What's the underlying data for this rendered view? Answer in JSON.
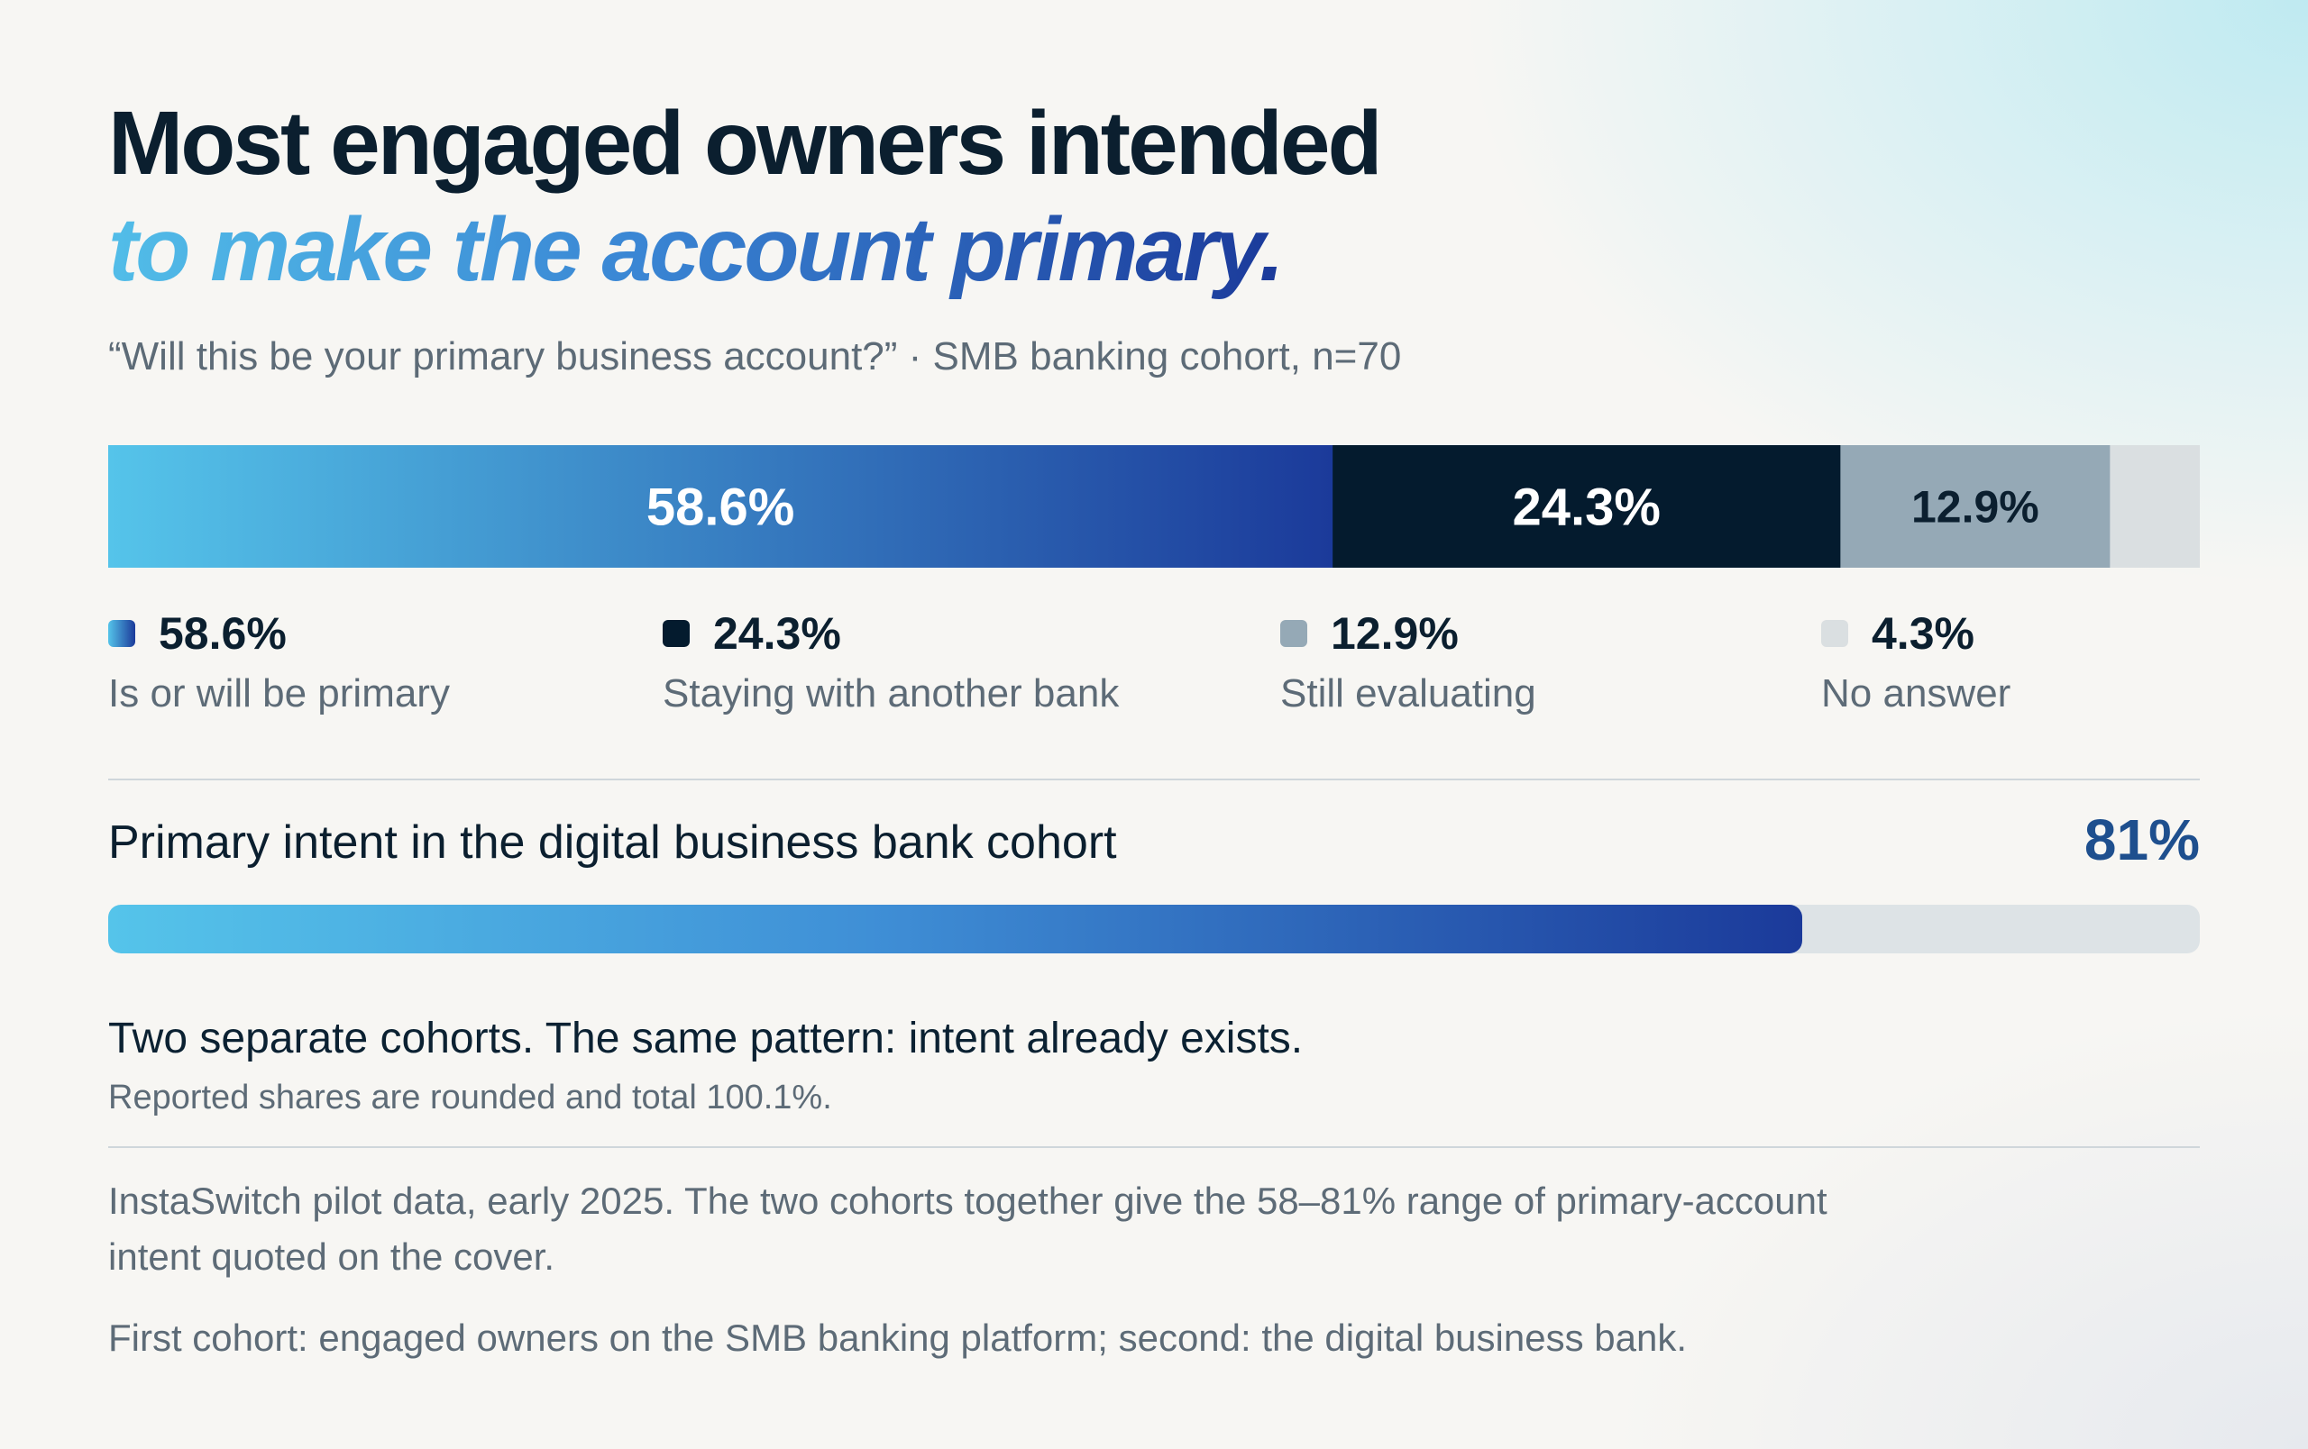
{
  "title_line1": "Most engaged owners intended",
  "title_line2": "to make the account primary.",
  "subtitle": "“Will this be your primary business account?” · SMB banking cohort, n=70",
  "chart_data": [
    {
      "type": "bar",
      "stacked": true,
      "orientation": "horizontal",
      "categories": [
        "Is or will be primary",
        "Staying with another bank",
        "Still evaluating",
        "No answer"
      ],
      "values": [
        58.6,
        24.3,
        12.9,
        4.3
      ],
      "data_labels": [
        "58.6%",
        "24.3%",
        "12.9%",
        ""
      ],
      "legend_values": [
        "58.6%",
        "24.3%",
        "12.9%",
        "4.3%"
      ],
      "colors": [
        "#1b3a9a",
        "#041b2e",
        "#95a9b6",
        "#dadfe1"
      ],
      "gradient": [
        "#55c4ea",
        "#1b3a9a"
      ],
      "legend_position": "bottom"
    },
    {
      "type": "bar",
      "label": "Primary intent in the digital business bank cohort",
      "value_text": "81%",
      "value": 81,
      "max": 100,
      "track_color": "#dde3e6"
    }
  ],
  "note_main": "Two separate cohorts. The same pattern: intent already exists.",
  "note_sub": "Reported shares are rounded and total 100.1%.",
  "source_1": "InstaSwitch pilot data, early 2025. The two cohorts together give the 58–81% range of primary-account intent quoted on the cover.",
  "source_2": "First cohort: engaged owners on the SMB banking platform; second: the digital business bank."
}
